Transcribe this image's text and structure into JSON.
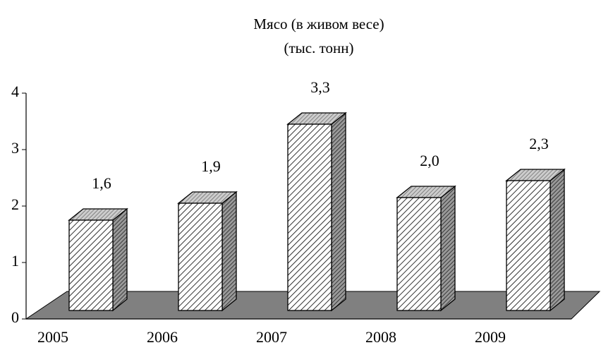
{
  "chart_data": {
    "type": "bar3d",
    "title": [
      "Мясо (в живом весе)",
      "(тыс. тонн)"
    ],
    "categories": [
      "2005",
      "2006",
      "2007",
      "2008",
      "2009"
    ],
    "values": [
      1.6,
      1.9,
      3.3,
      2.0,
      2.3
    ],
    "value_labels": [
      "1,6",
      "1,9",
      "3,3",
      "2,0",
      "2,3"
    ],
    "ylim": [
      0,
      4
    ],
    "yticks": [
      0,
      1,
      2,
      3,
      4
    ],
    "floor_color": "#808080"
  }
}
